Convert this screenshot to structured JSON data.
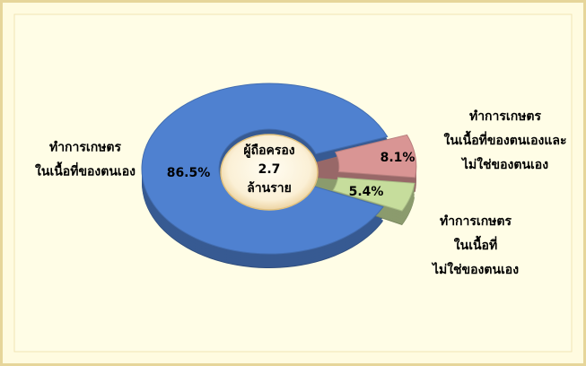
{
  "chart_data": {
    "type": "pie",
    "donut": true,
    "categories": [
      [
        "ทำการเกษตร",
        "ในเนื้อที่ของตนเอง"
      ],
      [
        "ทำการเกษตร",
        "ในเนื้อที่ของตนเองและ",
        "ไม่ใช่ของตนเอง"
      ],
      [
        "ทำการเกษตร",
        "ในเนื้อที่",
        "ไม่ใช่ของตนเอง"
      ]
    ],
    "values": [
      86.5,
      8.1,
      5.4
    ],
    "value_labels": [
      "86.5%",
      "8.1%",
      "5.4%"
    ],
    "colors": [
      "#4f81d0",
      "#d99594",
      "#c6dd9c"
    ],
    "center_label": [
      "ผู้ถือครอง",
      "2.7",
      "ล้านราย"
    ]
  }
}
